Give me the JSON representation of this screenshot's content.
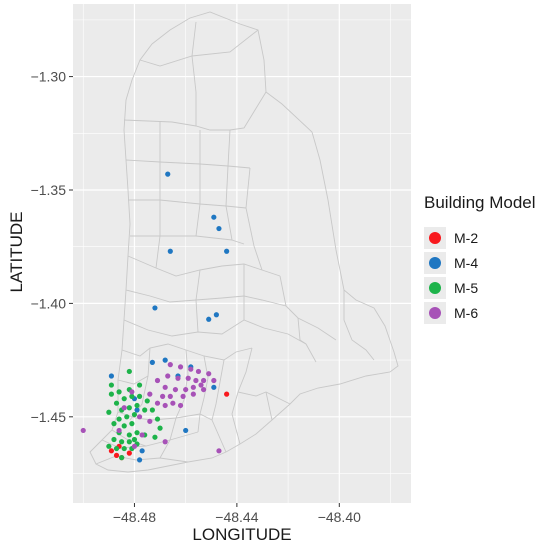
{
  "map": {
    "x_axis_title": "LONGITUDE",
    "y_axis_title": "LATITUDE",
    "x_ticks": [
      {
        "value": -48.48,
        "label": "−48.48"
      },
      {
        "value": -48.44,
        "label": "−48.44"
      },
      {
        "value": -48.4,
        "label": "−48.40"
      }
    ],
    "y_ticks": [
      {
        "value": -1.3,
        "label": "−1.30"
      },
      {
        "value": -1.35,
        "label": "−1.35"
      },
      {
        "value": -1.4,
        "label": "−1.40"
      },
      {
        "value": -1.45,
        "label": "−1.45"
      }
    ],
    "xlim": [
      -48.504,
      -48.372
    ],
    "ylim": [
      -1.488,
      -1.268
    ],
    "panel_color": "#ebebeb",
    "grid_color": "#ffffff",
    "boundary_color": "#c8c8c8"
  },
  "legend": {
    "title": "Building Model",
    "items": [
      {
        "label": "M-2",
        "color": "#f8191e"
      },
      {
        "label": "M-4",
        "color": "#1f77c2"
      },
      {
        "label": "M-5",
        "color": "#1db34a"
      },
      {
        "label": "M-6",
        "color": "#a752b7"
      }
    ]
  },
  "chart_data": {
    "type": "scatter",
    "xlabel": "LONGITUDE",
    "ylabel": "LATITUDE",
    "xlim": [
      -48.504,
      -48.372
    ],
    "ylim": [
      -1.488,
      -1.268
    ],
    "grid": true,
    "legend_position": "right",
    "series": [
      {
        "name": "M-2",
        "color": "#f8191e",
        "points": [
          [
            -48.489,
            -1.465
          ],
          [
            -48.487,
            -1.467
          ],
          [
            -48.485,
            -1.468
          ],
          [
            -48.482,
            -1.466
          ],
          [
            -48.486,
            -1.463
          ],
          [
            -48.444,
            -1.44
          ]
        ]
      },
      {
        "name": "M-4",
        "color": "#1f77c2",
        "points": [
          [
            -48.467,
            -1.343
          ],
          [
            -48.449,
            -1.362
          ],
          [
            -48.447,
            -1.367
          ],
          [
            -48.466,
            -1.377
          ],
          [
            -48.444,
            -1.377
          ],
          [
            -48.472,
            -1.402
          ],
          [
            -48.448,
            -1.405
          ],
          [
            -48.451,
            -1.407
          ],
          [
            -48.473,
            -1.426
          ],
          [
            -48.468,
            -1.425
          ],
          [
            -48.463,
            -1.432
          ],
          [
            -48.458,
            -1.428
          ],
          [
            -48.449,
            -1.437
          ],
          [
            -48.489,
            -1.432
          ],
          [
            -48.48,
            -1.442
          ],
          [
            -48.479,
            -1.447
          ],
          [
            -48.477,
            -1.465
          ],
          [
            -48.478,
            -1.469
          ],
          [
            -48.46,
            -1.456
          ]
        ]
      },
      {
        "name": "M-5",
        "color": "#1db34a",
        "points": [
          [
            -48.482,
            -1.43
          ],
          [
            -48.489,
            -1.436
          ],
          [
            -48.486,
            -1.439
          ],
          [
            -48.482,
            -1.438
          ],
          [
            -48.478,
            -1.436
          ],
          [
            -48.489,
            -1.44
          ],
          [
            -48.487,
            -1.444
          ],
          [
            -48.484,
            -1.442
          ],
          [
            -48.481,
            -1.441
          ],
          [
            -48.478,
            -1.441
          ],
          [
            -48.475,
            -1.443
          ],
          [
            -48.485,
            -1.447
          ],
          [
            -48.482,
            -1.446
          ],
          [
            -48.479,
            -1.445
          ],
          [
            -48.476,
            -1.447
          ],
          [
            -48.473,
            -1.447
          ],
          [
            -48.49,
            -1.448
          ],
          [
            -48.486,
            -1.451
          ],
          [
            -48.483,
            -1.45
          ],
          [
            -48.48,
            -1.449
          ],
          [
            -48.488,
            -1.453
          ],
          [
            -48.484,
            -1.454
          ],
          [
            -48.481,
            -1.453
          ],
          [
            -48.471,
            -1.451
          ],
          [
            -48.47,
            -1.455
          ],
          [
            -48.486,
            -1.457
          ],
          [
            -48.482,
            -1.458
          ],
          [
            -48.479,
            -1.457
          ],
          [
            -48.476,
            -1.458
          ],
          [
            -48.488,
            -1.46
          ],
          [
            -48.485,
            -1.461
          ],
          [
            -48.482,
            -1.461
          ],
          [
            -48.479,
            -1.462
          ],
          [
            -48.49,
            -1.463
          ],
          [
            -48.487,
            -1.464
          ],
          [
            -48.484,
            -1.464
          ],
          [
            -48.481,
            -1.464
          ],
          [
            -48.472,
            -1.459
          ],
          [
            -48.485,
            -1.468
          ],
          [
            -48.48,
            -1.46
          ]
        ]
      },
      {
        "name": "M-6",
        "color": "#a752b7",
        "points": [
          [
            -48.466,
            -1.427
          ],
          [
            -48.462,
            -1.428
          ],
          [
            -48.458,
            -1.429
          ],
          [
            -48.455,
            -1.43
          ],
          [
            -48.451,
            -1.431
          ],
          [
            -48.467,
            -1.432
          ],
          [
            -48.463,
            -1.433
          ],
          [
            -48.459,
            -1.433
          ],
          [
            -48.456,
            -1.434
          ],
          [
            -48.453,
            -1.434
          ],
          [
            -48.449,
            -1.434
          ],
          [
            -48.471,
            -1.434
          ],
          [
            -48.468,
            -1.437
          ],
          [
            -48.464,
            -1.438
          ],
          [
            -48.46,
            -1.438
          ],
          [
            -48.457,
            -1.437
          ],
          [
            -48.454,
            -1.436
          ],
          [
            -48.469,
            -1.441
          ],
          [
            -48.466,
            -1.441
          ],
          [
            -48.461,
            -1.441
          ],
          [
            -48.457,
            -1.44
          ],
          [
            -48.453,
            -1.438
          ],
          [
            -48.474,
            -1.44
          ],
          [
            -48.471,
            -1.444
          ],
          [
            -48.468,
            -1.445
          ],
          [
            -48.465,
            -1.444
          ],
          [
            -48.462,
            -1.445
          ],
          [
            -48.481,
            -1.439
          ],
          [
            -48.484,
            -1.446
          ],
          [
            -48.478,
            -1.45
          ],
          [
            -48.474,
            -1.452
          ],
          [
            -48.486,
            -1.456
          ],
          [
            -48.477,
            -1.458
          ],
          [
            -48.468,
            -1.461
          ],
          [
            -48.48,
            -1.463
          ],
          [
            -48.5,
            -1.456
          ],
          [
            -48.447,
            -1.465
          ]
        ]
      }
    ]
  }
}
